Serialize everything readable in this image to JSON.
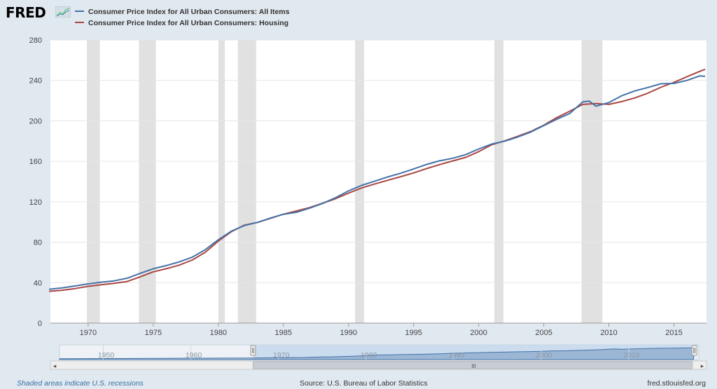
{
  "logo": {
    "text": "FRED"
  },
  "chart_data": {
    "type": "line",
    "series": [
      {
        "name": "Consumer Price Index for All Urban Consumers: All Items",
        "color": "#4572a7",
        "points": [
          [
            1967,
            33.4
          ],
          [
            1968,
            34.8
          ],
          [
            1969,
            36.7
          ],
          [
            1970,
            38.8
          ],
          [
            1971,
            40.5
          ],
          [
            1972,
            41.8
          ],
          [
            1973,
            44.4
          ],
          [
            1974,
            49.3
          ],
          [
            1975,
            53.8
          ],
          [
            1976,
            56.9
          ],
          [
            1977,
            60.6
          ],
          [
            1978,
            65.2
          ],
          [
            1979,
            72.6
          ],
          [
            1980,
            82.4
          ],
          [
            1981,
            90.9
          ],
          [
            1982,
            96.5
          ],
          [
            1983,
            99.6
          ],
          [
            1984,
            103.9
          ],
          [
            1985,
            107.6
          ],
          [
            1986,
            109.6
          ],
          [
            1987,
            113.6
          ],
          [
            1988,
            118.3
          ],
          [
            1989,
            124.0
          ],
          [
            1990,
            130.7
          ],
          [
            1991,
            136.2
          ],
          [
            1992,
            140.3
          ],
          [
            1993,
            144.5
          ],
          [
            1994,
            148.2
          ],
          [
            1995,
            152.4
          ],
          [
            1996,
            156.9
          ],
          [
            1997,
            160.5
          ],
          [
            1998,
            163.0
          ],
          [
            1999,
            166.6
          ],
          [
            2000,
            172.2
          ],
          [
            2001,
            177.1
          ],
          [
            2002,
            179.9
          ],
          [
            2003,
            184.0
          ],
          [
            2004,
            188.9
          ],
          [
            2005,
            195.3
          ],
          [
            2006,
            201.6
          ],
          [
            2007,
            207.3
          ],
          [
            2008,
            218.8
          ],
          [
            2008.5,
            219.5
          ],
          [
            2009,
            214.5
          ],
          [
            2010,
            218.1
          ],
          [
            2011,
            224.9
          ],
          [
            2012,
            229.6
          ],
          [
            2013,
            233.0
          ],
          [
            2014,
            236.7
          ],
          [
            2015,
            237.0
          ],
          [
            2016,
            240.0
          ],
          [
            2017,
            244.5
          ],
          [
            2017.4,
            244.0
          ]
        ]
      },
      {
        "name": "Consumer Price Index for All Urban Consumers: Housing",
        "color": "#aa4643",
        "points": [
          [
            1967,
            31.5
          ],
          [
            1968,
            32.5
          ],
          [
            1969,
            34.2
          ],
          [
            1970,
            36.4
          ],
          [
            1971,
            38.0
          ],
          [
            1972,
            39.4
          ],
          [
            1973,
            41.2
          ],
          [
            1974,
            45.8
          ],
          [
            1975,
            50.7
          ],
          [
            1976,
            53.8
          ],
          [
            1977,
            57.4
          ],
          [
            1978,
            62.4
          ],
          [
            1979,
            70.1
          ],
          [
            1980,
            81.1
          ],
          [
            1981,
            90.4
          ],
          [
            1982,
            96.9
          ],
          [
            1983,
            99.5
          ],
          [
            1984,
            103.6
          ],
          [
            1985,
            107.7
          ],
          [
            1986,
            110.9
          ],
          [
            1987,
            114.2
          ],
          [
            1988,
            118.5
          ],
          [
            1989,
            123.0
          ],
          [
            1990,
            128.5
          ],
          [
            1991,
            133.6
          ],
          [
            1992,
            137.5
          ],
          [
            1993,
            141.2
          ],
          [
            1994,
            144.8
          ],
          [
            1995,
            148.5
          ],
          [
            1996,
            152.8
          ],
          [
            1997,
            156.8
          ],
          [
            1998,
            160.4
          ],
          [
            1999,
            163.9
          ],
          [
            2000,
            169.6
          ],
          [
            2001,
            176.4
          ],
          [
            2002,
            180.3
          ],
          [
            2003,
            184.8
          ],
          [
            2004,
            189.5
          ],
          [
            2005,
            195.7
          ],
          [
            2006,
            203.2
          ],
          [
            2007,
            209.6
          ],
          [
            2008,
            216.3
          ],
          [
            2009,
            217.1
          ],
          [
            2010,
            216.3
          ],
          [
            2011,
            219.1
          ],
          [
            2012,
            222.7
          ],
          [
            2013,
            227.4
          ],
          [
            2014,
            233.2
          ],
          [
            2015,
            238.1
          ],
          [
            2016,
            243.7
          ],
          [
            2017,
            249.0
          ],
          [
            2017.4,
            251.0
          ]
        ]
      }
    ],
    "recessions": [
      [
        1969.9,
        1970.9
      ],
      [
        1973.9,
        1975.2
      ],
      [
        1980.0,
        1980.5
      ],
      [
        1981.5,
        1982.9
      ],
      [
        1990.5,
        1991.2
      ],
      [
        2001.2,
        2001.9
      ],
      [
        2007.9,
        2009.5
      ]
    ],
    "xlim": [
      1967.1,
      2017.5
    ],
    "ylim": [
      0,
      280
    ],
    "yticks": [
      0,
      40,
      80,
      120,
      160,
      200,
      240,
      280
    ],
    "xticks": [
      1970,
      1975,
      1980,
      1985,
      1990,
      1995,
      2000,
      2005,
      2010,
      2015
    ],
    "grid": true,
    "legend_position": "top-left",
    "navigator": {
      "xlim": [
        1945.0,
        2018.0
      ],
      "xticks": [
        1950,
        1960,
        1970,
        1980,
        1990,
        2000,
        2010
      ],
      "selected_range": [
        1967.1,
        2017.5
      ],
      "scrollbar_label": "III",
      "left_arrow": "◂",
      "right_arrow": "▸"
    }
  },
  "footer": {
    "note": "Shaded areas indicate U.S. recessions",
    "source": "Source: U.S. Bureau of Labor Statistics",
    "url": "fred.stlouisfed.org"
  }
}
